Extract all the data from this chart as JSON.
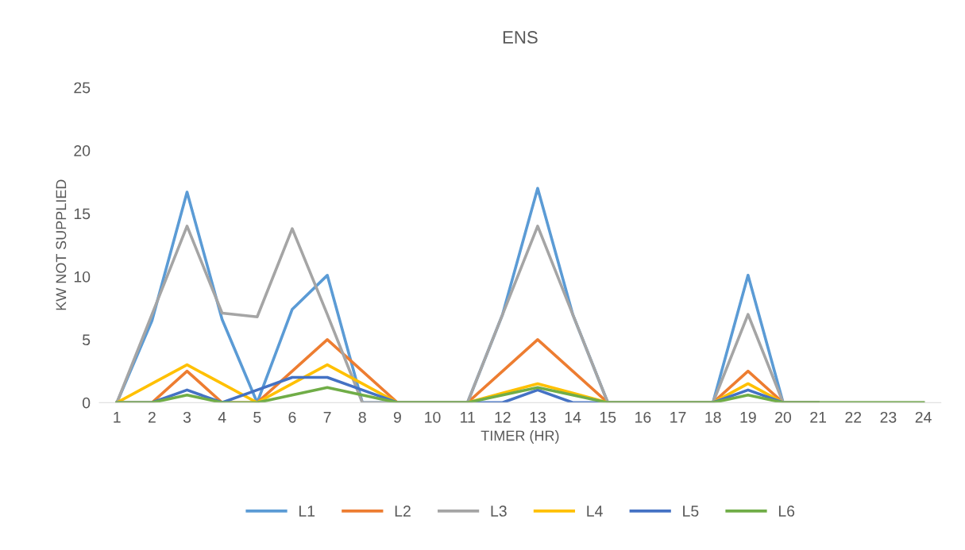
{
  "chart_data": {
    "type": "line",
    "title": "ENS",
    "xlabel": "TIMER (HR)",
    "ylabel": "KW NOT SUPPLIED",
    "categories": [
      "1",
      "2",
      "3",
      "4",
      "5",
      "6",
      "7",
      "8",
      "9",
      "10",
      "11",
      "12",
      "13",
      "14",
      "15",
      "16",
      "17",
      "18",
      "19",
      "20",
      "21",
      "22",
      "23",
      "24"
    ],
    "ylim": [
      0,
      25
    ],
    "yticks": [
      0,
      5,
      10,
      15,
      20,
      25
    ],
    "grid": false,
    "legend": "bottom",
    "marker": "none",
    "line_style": "solid",
    "series": [
      {
        "name": "L1",
        "color": "#5b9bd5",
        "values": [
          0,
          6.5,
          16.7,
          6.6,
          0,
          7.4,
          10.1,
          0,
          0,
          0,
          0,
          7,
          17,
          7,
          0,
          0,
          0,
          0,
          10.1,
          0,
          0,
          null,
          null,
          null
        ]
      },
      {
        "name": "L2",
        "color": "#ed7d31",
        "values": [
          0,
          0,
          2.5,
          0,
          0,
          2.5,
          5,
          2.5,
          0,
          0,
          0,
          2.5,
          5,
          2.5,
          0,
          0,
          0,
          0,
          2.5,
          0,
          0,
          null,
          null,
          null
        ]
      },
      {
        "name": "L3",
        "color": "#a5a5a5",
        "values": [
          0,
          7,
          14,
          7.1,
          6.8,
          13.8,
          7,
          0,
          0,
          0,
          0,
          7,
          14,
          7,
          0,
          0,
          0,
          0,
          7,
          0,
          0,
          0,
          0,
          0
        ]
      },
      {
        "name": "L4",
        "color": "#ffc000",
        "values": [
          0,
          1.5,
          3,
          1.5,
          0,
          1.5,
          3,
          1.5,
          0,
          0,
          0,
          0.75,
          1.5,
          0.75,
          0,
          0,
          0,
          0,
          1.5,
          0,
          0,
          null,
          null,
          null
        ]
      },
      {
        "name": "L5",
        "color": "#4472c4",
        "values": [
          0,
          0,
          1,
          0,
          1,
          2,
          2,
          1,
          0,
          0,
          0,
          0,
          1,
          0,
          0,
          0,
          0,
          0,
          1,
          0,
          0,
          null,
          null,
          null
        ]
      },
      {
        "name": "L6",
        "color": "#70ad47",
        "values": [
          0,
          0,
          0.6,
          0,
          0,
          0.6,
          1.2,
          0.6,
          0,
          0,
          0,
          0.6,
          1.2,
          0.6,
          0,
          0,
          0,
          0,
          0.6,
          0,
          0,
          0,
          0,
          0
        ]
      }
    ]
  }
}
